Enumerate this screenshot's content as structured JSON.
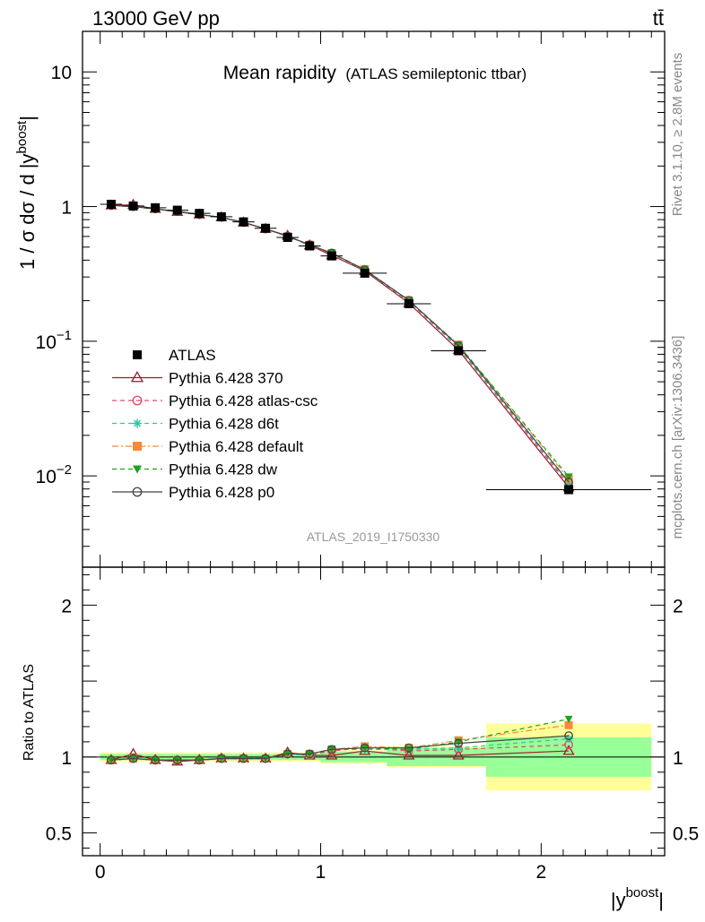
{
  "header": {
    "energy_label": "13000 GeV pp",
    "process_label": "tt̄"
  },
  "main_plot": {
    "title": "Mean rapidity",
    "subtitle": "(ATLAS semileptonic ttbar)",
    "ylabel_main": "1 / σ dσ / d |y",
    "ylabel_sup": "boost",
    "ylabel_tail": "|",
    "analysis_label": "ATLAS_2019_I1750330",
    "ytick_labels": [
      {
        "value": 10,
        "base": "10",
        "exp": ""
      },
      {
        "value": 1,
        "base": "1",
        "exp": ""
      },
      {
        "value": 0.1,
        "base": "10",
        "exp": "−1"
      },
      {
        "value": 0.01,
        "base": "10",
        "exp": "−2"
      }
    ]
  },
  "ratio_plot": {
    "ylabel": "Ratio to ATLAS",
    "ytick_labels": [
      {
        "value": 2,
        "text": "2"
      },
      {
        "value": 1,
        "text": "1"
      },
      {
        "value": 0.5,
        "text": "0.5"
      }
    ],
    "xtick_labels": [
      {
        "value": 0,
        "text": "0"
      },
      {
        "value": 1,
        "text": "1"
      },
      {
        "value": 2,
        "text": "2"
      }
    ],
    "xlabel_main": "|y",
    "xlabel_sup": "boost",
    "xlabel_tail": "|"
  },
  "side_labels": {
    "rivet": "Rivet 3.1.10, ≥ 2.8M events",
    "mcplots": "mcplots.cern.ch [arXiv:1306.3436]"
  },
  "legend": [
    {
      "label": "ATLAS",
      "marker": "square-filled",
      "color": "#000000",
      "dash": "none"
    },
    {
      "label": "Pythia 6.428 370",
      "marker": "triangle-open",
      "color": "#9b1b30",
      "dash": "solid"
    },
    {
      "label": "Pythia 6.428 atlas-csc",
      "marker": "circle-open",
      "color": "#e8436e",
      "dash": "dashed"
    },
    {
      "label": "Pythia 6.428 d6t",
      "marker": "star",
      "color": "#26c9a0",
      "dash": "dashed"
    },
    {
      "label": "Pythia 6.428 default",
      "marker": "square-filled",
      "color": "#f58a3a",
      "dash": "dashdot"
    },
    {
      "label": "Pythia 6.428 dw",
      "marker": "triangle-down-filled",
      "color": "#1ea31e",
      "dash": "dashed"
    },
    {
      "label": "Pythia 6.428 p0",
      "marker": "circle-open",
      "color": "#444444",
      "dash": "solid"
    }
  ],
  "chart_data": {
    "type": "line",
    "x_scale": "linear",
    "y_scale": "log",
    "xlim": [
      -0.08,
      2.56
    ],
    "ylim_main": [
      0.0021,
      20
    ],
    "ylim_ratio": [
      0.35,
      2.25
    ],
    "bins": [
      [
        0,
        0.1
      ],
      [
        0.1,
        0.2
      ],
      [
        0.2,
        0.3
      ],
      [
        0.3,
        0.4
      ],
      [
        0.4,
        0.5
      ],
      [
        0.5,
        0.6
      ],
      [
        0.6,
        0.7
      ],
      [
        0.7,
        0.8
      ],
      [
        0.8,
        0.9
      ],
      [
        0.9,
        1.0
      ],
      [
        1.0,
        1.1
      ],
      [
        1.1,
        1.3
      ],
      [
        1.3,
        1.5
      ],
      [
        1.5,
        1.75
      ],
      [
        1.75,
        2.5
      ]
    ],
    "x": [
      0.05,
      0.15,
      0.25,
      0.35,
      0.45,
      0.55,
      0.65,
      0.75,
      0.85,
      0.95,
      1.05,
      1.2,
      1.4,
      1.625,
      2.125
    ],
    "data": {
      "name": "ATLAS",
      "values": [
        1.04,
        1.01,
        0.98,
        0.94,
        0.89,
        0.84,
        0.77,
        0.69,
        0.59,
        0.51,
        0.43,
        0.32,
        0.19,
        0.085,
        0.0079
      ],
      "band_inner": [
        0.02,
        0.02,
        0.02,
        0.02,
        0.02,
        0.02,
        0.02,
        0.02,
        0.02,
        0.02,
        0.035,
        0.035,
        0.06,
        0.06,
        0.13
      ],
      "band_outer": [
        0.03,
        0.03,
        0.03,
        0.03,
        0.03,
        0.03,
        0.03,
        0.03,
        0.03,
        0.03,
        0.045,
        0.045,
        0.07,
        0.07,
        0.22
      ]
    },
    "series": [
      {
        "name": "Pythia 6.428 370",
        "ratio": [
          0.98,
          1.02,
          0.98,
          0.97,
          0.98,
          0.99,
          0.99,
          0.99,
          1.03,
          1.01,
          1.01,
          1.04,
          1.01,
          1.01,
          1.04
        ]
      },
      {
        "name": "Pythia 6.428 atlas-csc",
        "ratio": [
          0.98,
          0.99,
          0.98,
          0.98,
          0.98,
          0.99,
          0.99,
          0.99,
          1.02,
          1.01,
          1.04,
          1.06,
          1.04,
          1.05,
          1.08
        ]
      },
      {
        "name": "Pythia 6.428 d6t",
        "ratio": [
          0.98,
          0.99,
          0.98,
          0.98,
          0.98,
          0.99,
          0.99,
          0.99,
          1.02,
          1.01,
          1.05,
          1.05,
          1.05,
          1.06,
          1.12
        ]
      },
      {
        "name": "Pythia 6.428 default",
        "ratio": [
          0.98,
          0.99,
          0.98,
          0.98,
          0.98,
          0.99,
          0.99,
          0.99,
          1.02,
          1.02,
          1.05,
          1.07,
          1.06,
          1.11,
          1.21
        ]
      },
      {
        "name": "Pythia 6.428 dw",
        "ratio": [
          0.98,
          0.99,
          0.98,
          0.98,
          0.98,
          0.99,
          0.99,
          0.99,
          1.02,
          1.02,
          1.05,
          1.06,
          1.05,
          1.1,
          1.25
        ]
      },
      {
        "name": "Pythia 6.428 p0",
        "ratio": [
          0.98,
          0.99,
          0.98,
          0.98,
          0.98,
          0.99,
          0.99,
          0.99,
          1.02,
          1.02,
          1.05,
          1.06,
          1.06,
          1.09,
          1.14
        ]
      }
    ]
  }
}
